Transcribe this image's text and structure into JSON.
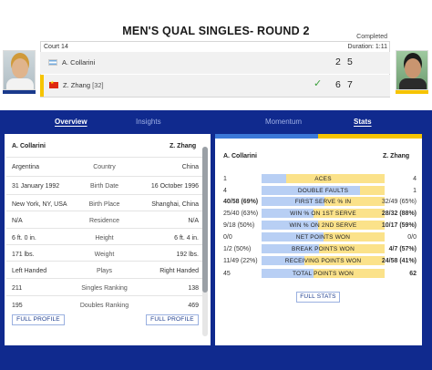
{
  "match": {
    "title": "MEN'S QUAL SINGLES- ROUND 2",
    "status": "Completed",
    "court": "Court 14",
    "duration": "Duration: 1:11"
  },
  "players": [
    {
      "name": "A. Collarini",
      "seed": "",
      "flag": "argentina-flag",
      "sets": [
        "2",
        "5"
      ],
      "winner": false,
      "bar_color": "#1a3a8c"
    },
    {
      "name": "Z. Zhang",
      "seed": "[32]",
      "flag": "china-flag",
      "sets": [
        "6",
        "7"
      ],
      "winner": true,
      "bar_color": "#f6c400"
    }
  ],
  "tabs": [
    {
      "label": "Overview",
      "active": true
    },
    {
      "label": "Insights",
      "active": false
    },
    {
      "label": "Momentum",
      "active": false
    },
    {
      "label": "Stats",
      "active": true
    }
  ],
  "h2h": {
    "player1": "A. Collarini",
    "player2": "Z. Zhang",
    "rows": [
      {
        "label": "Country",
        "p1": "Argentina",
        "p2": "China"
      },
      {
        "label": "Birth Date",
        "p1": "31 January 1992",
        "p2": "16 October 1996"
      },
      {
        "label": "Birth Place",
        "p1": "New York, NY, USA",
        "p2": "Shanghai, China"
      },
      {
        "label": "Residence",
        "p1": "N/A",
        "p2": "N/A"
      },
      {
        "label": "Height",
        "p1": "6 ft. 0 in.",
        "p2": "6 ft. 4 in."
      },
      {
        "label": "Weight",
        "p1": "171 lbs.",
        "p2": "192 lbs."
      },
      {
        "label": "Plays",
        "p1": "Left Handed",
        "p2": "Right Handed"
      },
      {
        "label": "Singles Ranking",
        "p1": "211",
        "p2": "138"
      },
      {
        "label": "Doubles Ranking",
        "p1": "195",
        "p2": "469"
      }
    ],
    "full_profile_label": "FULL PROFILE"
  },
  "stats": {
    "player1": "A. Collarini",
    "player2": "Z. Zhang",
    "rows": [
      {
        "label": "ACES",
        "p1": "1",
        "p2": "4",
        "share1": 0.2,
        "bold2": false,
        "bold1": false
      },
      {
        "label": "DOUBLE FAULTS",
        "p1": "4",
        "p2": "1",
        "share1": 0.8,
        "bold2": false,
        "bold1": false
      },
      {
        "label": "FIRST SERVE % IN",
        "p1": "40/58 (69%)",
        "p2": "32/49 (65%)",
        "share1": 0.51,
        "bold2": false,
        "bold1": true
      },
      {
        "label": "WIN % ON 1ST SERVE",
        "p1": "25/40 (63%)",
        "p2": "28/32 (88%)",
        "share1": 0.42,
        "bold2": true,
        "bold1": false
      },
      {
        "label": "WIN % ON 2ND SERVE",
        "p1": "9/18 (50%)",
        "p2": "10/17 (59%)",
        "share1": 0.46,
        "bold2": true,
        "bold1": false
      },
      {
        "label": "NET POINTS WON",
        "p1": "0/0",
        "p2": "0/0",
        "share1": 0.5,
        "bold2": false,
        "bold1": false
      },
      {
        "label": "BREAK POINTS WON",
        "p1": "1/2 (50%)",
        "p2": "4/7 (57%)",
        "share1": 0.47,
        "bold2": true,
        "bold1": false
      },
      {
        "label": "RECEIVING POINTS WON",
        "p1": "11/49 (22%)",
        "p2": "24/58 (41%)",
        "share1": 0.35,
        "bold2": true,
        "bold1": false
      },
      {
        "label": "TOTAL POINTS WON",
        "p1": "45",
        "p2": "62",
        "share1": 0.42,
        "bold2": true,
        "bold1": false
      }
    ],
    "full_stats_label": "FULL STATS"
  },
  "colors": {
    "panel": "#102a8e",
    "player1": "#3b78d8",
    "player2": "#f6c400",
    "winner_check": "#3a9e3a"
  }
}
